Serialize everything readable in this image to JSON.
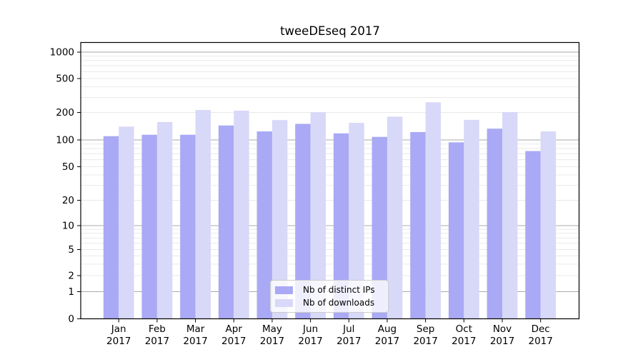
{
  "title": "tweeDEseq 2017",
  "chart_data": {
    "type": "bar",
    "title": "tweeDEseq 2017",
    "categories": [
      "Jan 2017",
      "Feb 2017",
      "Mar 2017",
      "Apr 2017",
      "May 2017",
      "Jun 2017",
      "Jul 2017",
      "Aug 2017",
      "Sep 2017",
      "Oct 2017",
      "Nov 2017",
      "Dec 2017"
    ],
    "series": [
      {
        "name": "Nb of distinct IPs",
        "color": "#a9a9f5",
        "values": [
          110,
          114,
          114,
          144,
          124,
          150,
          118,
          108,
          122,
          94,
          133,
          75
        ]
      },
      {
        "name": "Nb of downloads",
        "color": "#d8d8f8",
        "values": [
          140,
          157,
          214,
          210,
          165,
          201,
          154,
          180,
          263,
          166,
          202,
          124
        ]
      }
    ],
    "yticks": [
      0,
      1,
      2,
      5,
      10,
      20,
      50,
      100,
      200,
      500,
      1000
    ],
    "yscale": "log1p",
    "ylim": [
      0,
      1288
    ],
    "xlabel": "",
    "ylabel": "",
    "grid": "horizontal major+minor",
    "legend_position": "lower center"
  },
  "legend": {
    "items": [
      {
        "label": "Nb of distinct IPs",
        "color": "#a9a9f5"
      },
      {
        "label": "Nb of downloads",
        "color": "#d8d8f8"
      }
    ]
  },
  "colors": {
    "background": "#ffffff",
    "bar_ips": "#a9a9f5",
    "bar_downloads": "#d8d8f8",
    "grid_major": "#aaaaaa",
    "grid_minor": "#e9e9e9",
    "axis": "#000000",
    "text": "#000000",
    "legend_border": "#cccccc"
  }
}
